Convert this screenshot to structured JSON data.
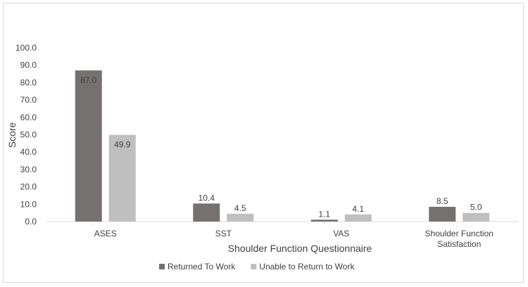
{
  "chart_data": {
    "type": "bar",
    "categories": [
      [
        "ASES"
      ],
      [
        "SST"
      ],
      [
        "VAS"
      ],
      [
        "Shoulder Function",
        "Satisfaction"
      ]
    ],
    "series": [
      {
        "name": "Returned To Work",
        "values": [
          87.0,
          10.4,
          1.1,
          8.5
        ],
        "color": "#767171"
      },
      {
        "name": "Unable to Return to Work",
        "values": [
          49.9,
          4.5,
          4.1,
          5.0
        ],
        "color": "#bfbfbf"
      }
    ],
    "xlabel": "Shoulder Function Questionnaire",
    "ylabel": "Score",
    "ylim": [
      0,
      100
    ],
    "yticks": [
      "0.0",
      "10.0",
      "20.0",
      "30.0",
      "40.0",
      "50.0",
      "60.0",
      "70.0",
      "80.0",
      "90.0",
      "100.0"
    ],
    "grid": false,
    "legend_position": "bottom"
  }
}
